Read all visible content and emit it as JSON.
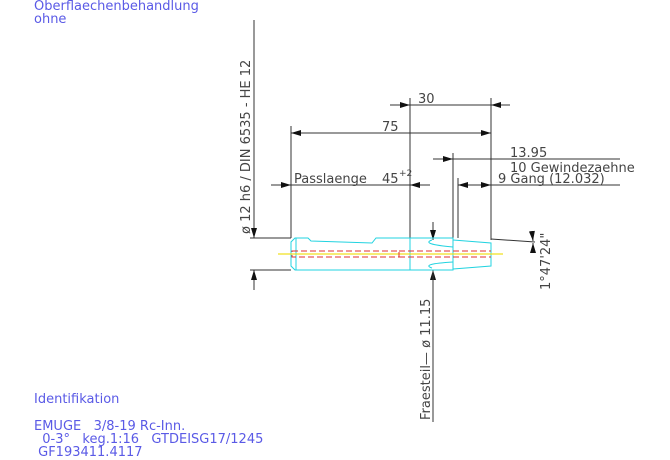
{
  "header": {
    "surface_label": "Oberflaechenbehandlung",
    "surface_value": "ohne"
  },
  "drawing": {
    "shank_spec": "ø 12 h6 / DIN 6535 - HE 12",
    "dim_30": "30",
    "dim_75": "75",
    "dim_1395": "13.95",
    "teeth": "10 Gewindezaehne",
    "pitch": "9 Gang (12.032)",
    "fit_length_label": "Passlaenge",
    "fit_length_value": "45",
    "fit_length_tol": "+2",
    "angle": "1°47'24\"",
    "mill_part": "Fraesteil—   ø 11.15"
  },
  "identification": {
    "title": "Identifikation",
    "line1": "EMUGE   3/8-19 Rc-Inn.",
    "line2": "  0-3°   keg.1:16   GTDEISG17/1245",
    "line3": " GF193411.4117"
  },
  "colors": {
    "text": "#5a5ae6",
    "outline": "#22d3e0",
    "center": "#f0e020",
    "hidden": "#e03030",
    "dim": "#333333"
  }
}
